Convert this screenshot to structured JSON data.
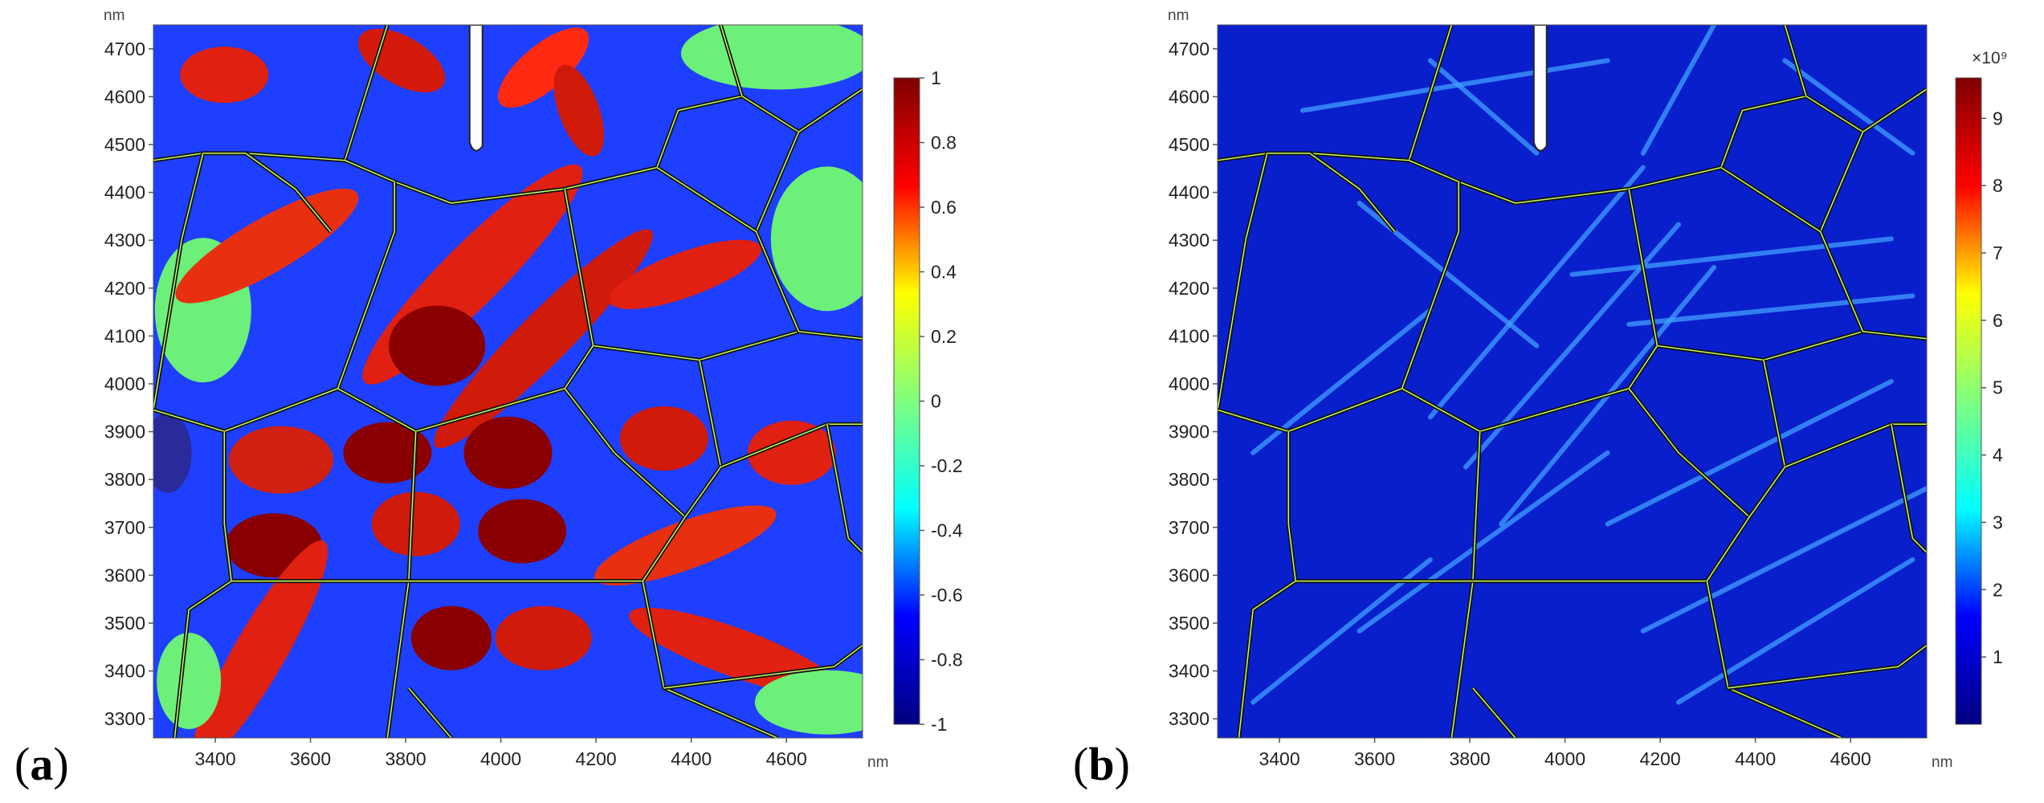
{
  "chart_data": [
    {
      "type": "heatmap",
      "panel_label": "a",
      "x_unit": "nm",
      "y_unit": "nm",
      "xlim": [
        3270,
        4760
      ],
      "ylim": [
        3260,
        4750
      ],
      "x_ticks": [
        3400,
        3600,
        3800,
        4000,
        4200,
        4400,
        4600
      ],
      "y_ticks": [
        3300,
        3400,
        3500,
        3600,
        3700,
        3800,
        3900,
        4000,
        4100,
        4200,
        4300,
        4400,
        4500,
        4600,
        4700
      ],
      "colorbar": {
        "min": -1,
        "max": 1,
        "ticks": [
          1,
          0.8,
          0.6,
          0.4,
          0.2,
          0,
          -0.2,
          -0.4,
          -0.6,
          -0.8,
          -1
        ],
        "colormap": "jet",
        "colors": [
          "#00007f",
          "#0000ff",
          "#00ffff",
          "#7fff7f",
          "#ffff00",
          "#ff0000",
          "#7f0000"
        ]
      },
      "grain_boundary_color": "#000000"
    },
    {
      "type": "heatmap",
      "panel_label": "b",
      "x_unit": "nm",
      "y_unit": "nm",
      "xlim": [
        3270,
        4760
      ],
      "ylim": [
        3260,
        4750
      ],
      "x_ticks": [
        3400,
        3600,
        3800,
        4000,
        4200,
        4400,
        4600
      ],
      "y_ticks": [
        3300,
        3400,
        3500,
        3600,
        3700,
        3800,
        3900,
        4000,
        4100,
        4200,
        4300,
        4400,
        4500,
        4600,
        4700
      ],
      "colorbar": {
        "min": 0,
        "max": 9.6,
        "multiplier": "×10⁹",
        "ticks": [
          9,
          8,
          7,
          6,
          5,
          4,
          3,
          2,
          1
        ],
        "colormap": "jet",
        "colors": [
          "#00007f",
          "#0000ff",
          "#00ffff",
          "#7fff7f",
          "#ffff00",
          "#ff0000",
          "#7f0000"
        ]
      },
      "grain_boundary_color": "#000000"
    }
  ]
}
